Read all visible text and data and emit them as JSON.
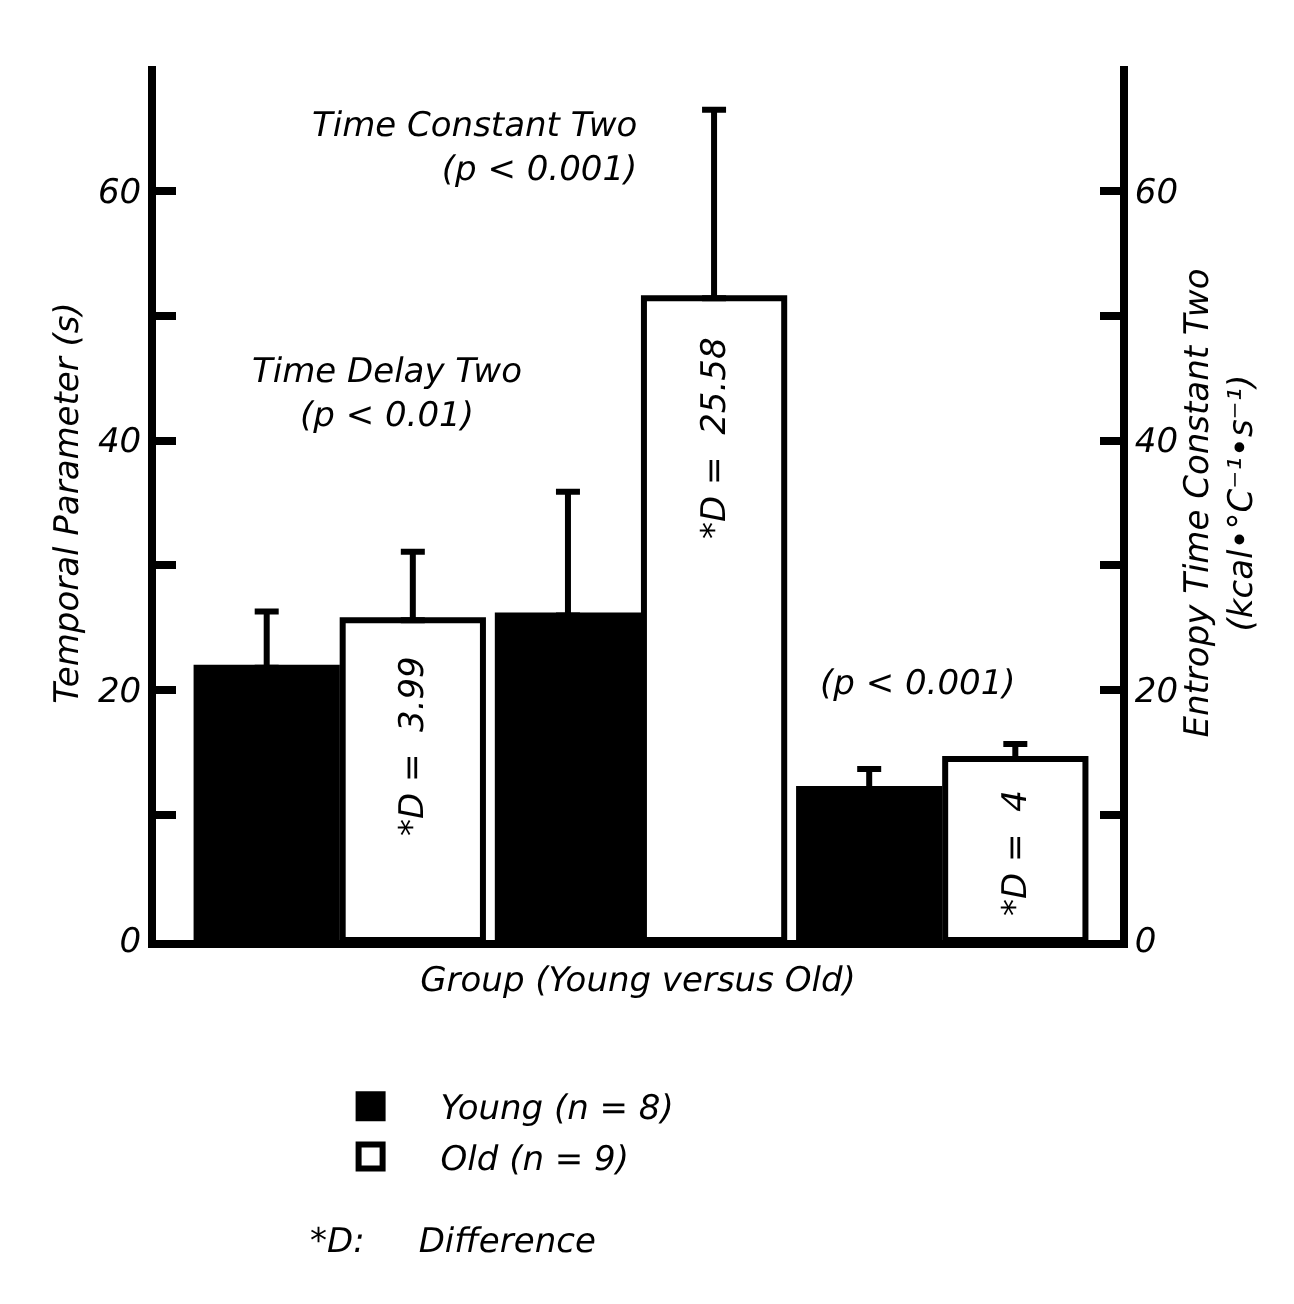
{
  "chart_data": {
    "type": "bar",
    "categories": [
      null,
      null,
      null
    ],
    "series": [
      {
        "name": "Young (n = 8)",
        "color": "#000000",
        "values": [
          21.8,
          26.0,
          12.1
        ],
        "errors": [
          [
            21.8,
            26.3
          ],
          [
            26.0,
            35.9
          ],
          [
            12.1,
            13.7
          ]
        ]
      },
      {
        "name": "Old (n = 9)",
        "color": "#ffffff",
        "values": [
          25.6,
          51.4,
          14.5
        ],
        "errors": [
          [
            25.6,
            31.1
          ],
          [
            51.4,
            66.5
          ],
          [
            14.5,
            15.7
          ]
        ]
      }
    ],
    "xlabel": "Group (Young versus Old)",
    "ylabel": "Temporal Parameter (s)",
    "y2label": "Entropy Time Constant Two\n(kcal•°C⁻¹•s⁻¹)",
    "ylim": [
      0,
      70
    ],
    "yticks": [
      0,
      {
        "value": 10,
        "label": null
      },
      20,
      {
        "value": 30,
        "label": null
      },
      40,
      {
        "value": 50,
        "label": null
      },
      60
    ],
    "y2lim": [
      0,
      70
    ],
    "y2ticks": [
      0,
      {
        "value": 10,
        "label": null
      },
      20,
      {
        "value": 30,
        "label": null
      },
      40,
      {
        "value": 50,
        "label": null
      },
      60
    ],
    "annotations": [
      "Time Delay Two\n(p < 0.01)",
      "Time Constant Two\n(p < 0.001)",
      "(p < 0.001)",
      "*D =  3.99",
      "*D =  25.58",
      "*D =  4",
      "*D:     Difference"
    ],
    "legend": "bottom",
    "grid": false
  }
}
